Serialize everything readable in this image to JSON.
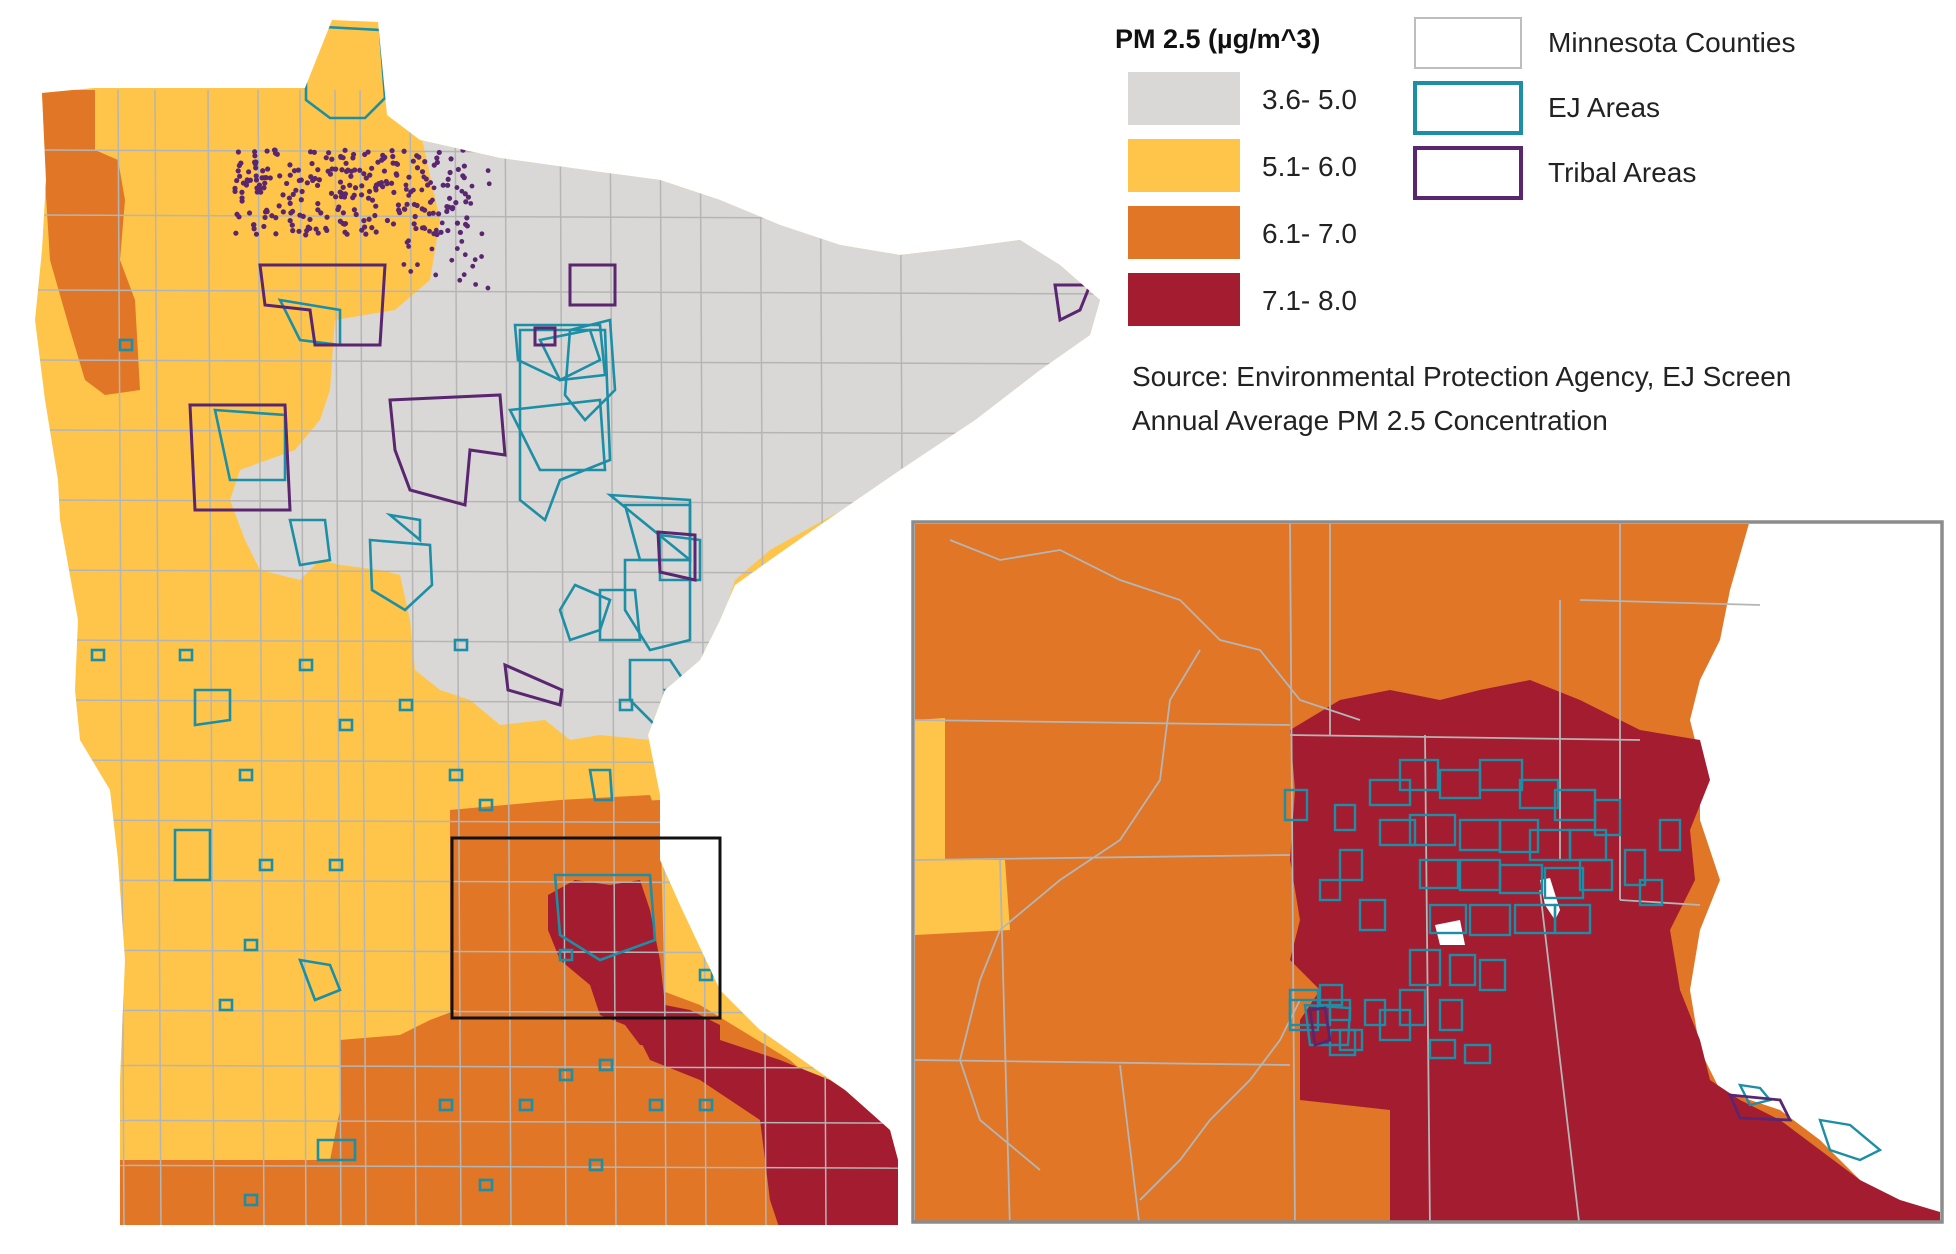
{
  "legend": {
    "title": "PM 2.5 (µg/m^3)",
    "classes": [
      {
        "label": "3.6- 5.0",
        "color": "#d9d8d6"
      },
      {
        "label": "5.1- 6.0",
        "color": "#fec54a"
      },
      {
        "label": "6.1- 7.0",
        "color": "#e07626"
      },
      {
        "label": "7.1- 8.0",
        "color": "#a31c30"
      }
    ],
    "outlines": [
      {
        "label": "Minnesota Counties",
        "color": "#bdbdbd"
      },
      {
        "label": "EJ Areas",
        "color": "#1c8ea6"
      },
      {
        "label": "Tribal Areas",
        "color": "#5a2670"
      }
    ]
  },
  "source": {
    "line1": "Source: Environmental Protection Agency, EJ Screen",
    "line2": "Annual Average PM 2.5 Concentration"
  },
  "colors": {
    "county_line": "#b5b5b5",
    "ej_line": "#1c8ea6",
    "tribal_line": "#5a2670",
    "inset_frame": "#8c8c8c",
    "locator_box": "#111111"
  }
}
